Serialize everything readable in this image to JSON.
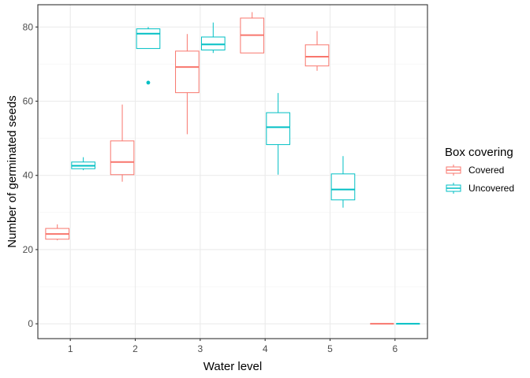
{
  "chart_data": {
    "type": "boxplot",
    "xlabel": "Water level",
    "ylabel": "Number of germinated seeds",
    "categories": [
      "1",
      "2",
      "3",
      "4",
      "5",
      "6"
    ],
    "ylim": [
      -4,
      86
    ],
    "yticks": [
      0,
      20,
      40,
      60,
      80
    ],
    "grid": true,
    "legend": {
      "title": "Box covering",
      "placement": "right"
    },
    "series": [
      {
        "name": "Covered",
        "color": "#F8766D",
        "boxes": [
          {
            "category": "1",
            "min": 22.5,
            "q1": 22.8,
            "median": 24.2,
            "q3": 25.7,
            "max": 26.8,
            "outliers": []
          },
          {
            "category": "2",
            "min": 38.3,
            "q1": 40.2,
            "median": 43.6,
            "q3": 49.3,
            "max": 59.1,
            "outliers": []
          },
          {
            "category": "3",
            "min": 51.1,
            "q1": 62.3,
            "median": 69.2,
            "q3": 73.5,
            "max": 78.1,
            "outliers": []
          },
          {
            "category": "4",
            "min": 73.0,
            "q1": 73.0,
            "median": 77.8,
            "q3": 82.4,
            "max": 84.0,
            "outliers": []
          },
          {
            "category": "5",
            "min": 68.2,
            "q1": 69.5,
            "median": 72.0,
            "q3": 75.2,
            "max": 78.9,
            "outliers": []
          },
          {
            "category": "6",
            "min": 0,
            "q1": 0,
            "median": 0,
            "q3": 0,
            "max": 0,
            "outliers": []
          }
        ]
      },
      {
        "name": "Uncovered",
        "color": "#00BFC4",
        "boxes": [
          {
            "category": "1",
            "min": 41.4,
            "q1": 41.8,
            "median": 42.6,
            "q3": 43.6,
            "max": 44.9,
            "outliers": []
          },
          {
            "category": "2",
            "min": 74.2,
            "q1": 74.2,
            "median": 78.2,
            "q3": 79.5,
            "max": 80.0,
            "outliers": [
              65.0
            ]
          },
          {
            "category": "3",
            "min": 73.0,
            "q1": 73.8,
            "median": 75.3,
            "q3": 77.3,
            "max": 81.2,
            "outliers": []
          },
          {
            "category": "4",
            "min": 40.2,
            "q1": 48.3,
            "median": 53.0,
            "q3": 56.9,
            "max": 62.2,
            "outliers": []
          },
          {
            "category": "5",
            "min": 31.3,
            "q1": 33.4,
            "median": 36.2,
            "q3": 40.4,
            "max": 45.2,
            "outliers": []
          },
          {
            "category": "6",
            "min": 0,
            "q1": 0,
            "median": 0,
            "q3": 0,
            "max": 0,
            "outliers": []
          }
        ]
      }
    ]
  }
}
